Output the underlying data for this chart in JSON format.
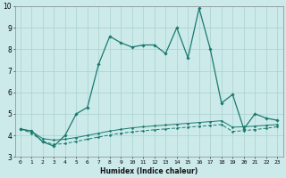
{
  "xlabel": "Humidex (Indice chaleur)",
  "x": [
    0,
    1,
    2,
    3,
    4,
    5,
    6,
    7,
    8,
    9,
    10,
    11,
    12,
    13,
    14,
    15,
    16,
    17,
    18,
    19,
    20,
    21,
    22,
    23
  ],
  "y_main": [
    4.3,
    4.2,
    3.7,
    3.5,
    4.0,
    5.0,
    5.3,
    7.3,
    8.6,
    8.3,
    8.1,
    8.2,
    8.2,
    7.8,
    9.0,
    7.6,
    9.9,
    8.0,
    5.5,
    5.9,
    4.3,
    5.0,
    4.8,
    4.7
  ],
  "y_flat1": [
    4.3,
    4.18,
    3.85,
    3.78,
    3.82,
    3.9,
    4.0,
    4.1,
    4.2,
    4.28,
    4.35,
    4.4,
    4.44,
    4.48,
    4.52,
    4.56,
    4.6,
    4.64,
    4.68,
    4.38,
    4.4,
    4.43,
    4.47,
    4.5
  ],
  "y_flat2": [
    4.3,
    4.1,
    3.72,
    3.58,
    3.62,
    3.72,
    3.82,
    3.92,
    4.02,
    4.1,
    4.16,
    4.21,
    4.26,
    4.3,
    4.34,
    4.38,
    4.42,
    4.46,
    4.5,
    4.18,
    4.22,
    4.27,
    4.33,
    4.4
  ],
  "line_color": "#1a7a6e",
  "background_color": "#cceaea",
  "grid_color": "#aad0d0",
  "ylim": [
    3,
    10
  ],
  "xlim": [
    -0.5,
    23.5
  ],
  "yticks": [
    3,
    4,
    5,
    6,
    7,
    8,
    9,
    10
  ],
  "xticks": [
    0,
    1,
    2,
    3,
    4,
    5,
    6,
    7,
    8,
    9,
    10,
    11,
    12,
    13,
    14,
    15,
    16,
    17,
    18,
    19,
    20,
    21,
    22,
    23
  ]
}
